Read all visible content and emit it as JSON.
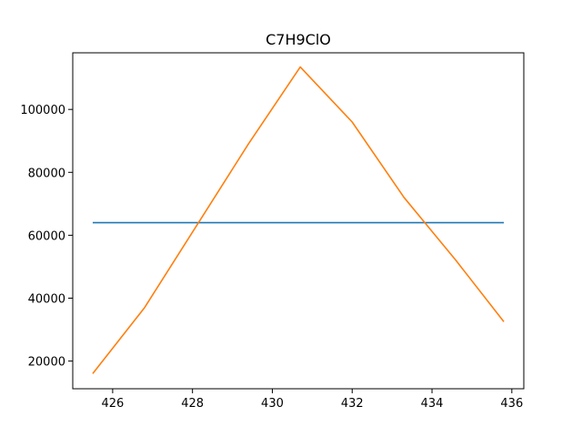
{
  "chart_data": {
    "type": "line",
    "title": "C7H9ClO",
    "xlabel": "",
    "ylabel": "",
    "xlim": [
      425.0,
      436.3
    ],
    "ylim": [
      11200,
      118000
    ],
    "xticks": [
      426,
      428,
      430,
      432,
      434,
      436
    ],
    "yticks": [
      20000,
      40000,
      60000,
      80000,
      100000
    ],
    "grid": false,
    "legend": "none",
    "series": [
      {
        "color": "#1f77b4",
        "x": [
          425.5,
          435.8
        ],
        "y": [
          64000,
          64000
        ]
      },
      {
        "color": "#ff7f0e",
        "x": [
          425.5,
          426.8,
          428.1,
          429.4,
          430.7,
          432.0,
          433.3,
          434.6,
          435.8
        ],
        "y": [
          16000,
          37000,
          63000,
          89000,
          113500,
          96000,
          72000,
          52000,
          32500
        ]
      }
    ]
  }
}
